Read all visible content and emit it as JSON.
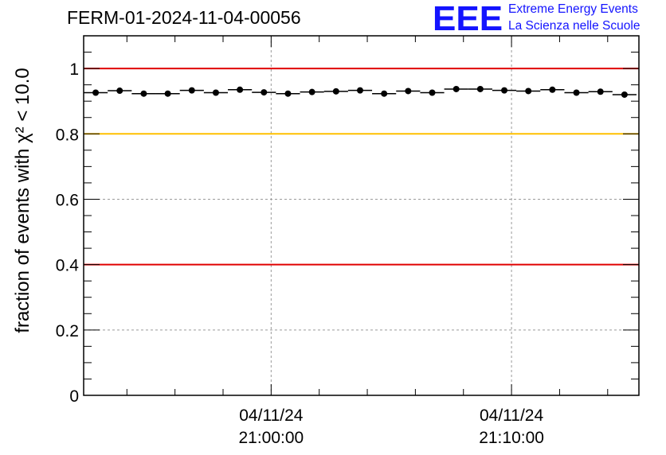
{
  "header": {
    "title": "FERM-01-2024-11-04-00056",
    "logo_text": "EEE",
    "brand_line1": "Extreme Energy Events",
    "brand_line2": "La Scienza nelle Scuole",
    "brand_color": "#1414ff"
  },
  "chart_data": {
    "type": "scatter",
    "title": "FERM-01-2024-11-04-00056",
    "ylabel": "fraction of events with χ² < 10.0",
    "xlabel": "",
    "ylim": [
      0,
      1.1
    ],
    "yticks": [
      0,
      0.2,
      0.4,
      0.6,
      0.8,
      1
    ],
    "ytick_labels": [
      "0",
      "0.2",
      "0.4",
      "0.6",
      "0.8",
      "1"
    ],
    "xlim_minutes": [
      -7.8,
      15.3
    ],
    "xticks": [
      {
        "minute": 0,
        "line1": "04/11/24",
        "line2": "21:00:00"
      },
      {
        "minute": 10,
        "line1": "04/11/24",
        "line2": "21:10:00"
      }
    ],
    "grid": true,
    "reference_lines": [
      {
        "y": 1.0,
        "color": "#e00000"
      },
      {
        "y": 0.8,
        "color": "#ffc000"
      },
      {
        "y": 0.4,
        "color": "#e00000"
      }
    ],
    "series": [
      {
        "marker": "circle",
        "color": "#000000",
        "x_minutes": [
          -7.3,
          -6.3,
          -5.3,
          -4.3,
          -3.3,
          -2.3,
          -1.3,
          -0.3,
          0.7,
          1.7,
          2.7,
          3.7,
          4.7,
          5.7,
          6.7,
          7.7,
          8.7,
          9.7,
          10.7,
          11.7,
          12.7,
          13.7,
          14.7
        ],
        "y": [
          0.926,
          0.932,
          0.923,
          0.923,
          0.933,
          0.926,
          0.935,
          0.927,
          0.923,
          0.928,
          0.93,
          0.933,
          0.923,
          0.931,
          0.926,
          0.937,
          0.937,
          0.933,
          0.931,
          0.935,
          0.926,
          0.929,
          0.92
        ],
        "bin_width_minutes": 1.0
      }
    ]
  }
}
